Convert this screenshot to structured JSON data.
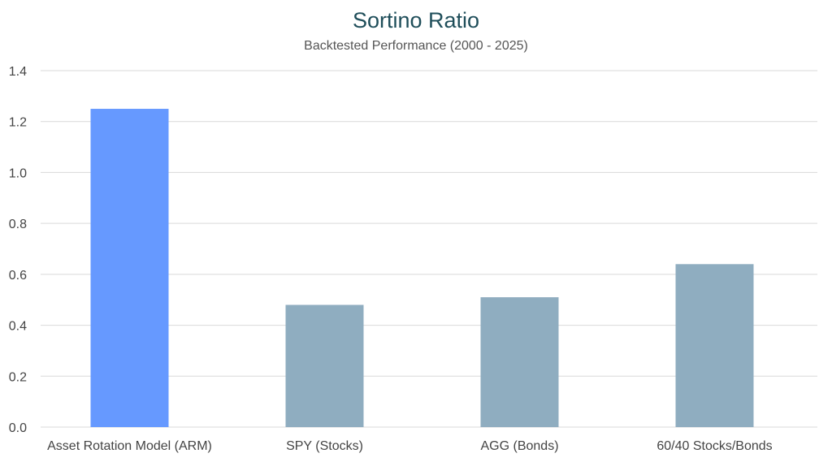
{
  "chart_data": {
    "type": "bar",
    "title": "Sortino Ratio",
    "subtitle": "Backtested Performance (2000 - 2025)",
    "xlabel": "",
    "ylabel": "",
    "categories": [
      "Asset Rotation Model (ARM)",
      "SPY (Stocks)",
      "AGG (Bonds)",
      "60/40 Stocks/Bonds"
    ],
    "values": [
      1.25,
      0.48,
      0.51,
      0.64
    ],
    "ylim": [
      0,
      1.4
    ],
    "yticks": [
      "0.0",
      "0.2",
      "0.4",
      "0.6",
      "0.8",
      "1.0",
      "1.2",
      "1.4"
    ],
    "grid": true,
    "legend": "none",
    "colors": {
      "highlight": "#6699ff",
      "default": "#8fadc0",
      "grid": "#d9d9d9",
      "title": "#1f4e5a",
      "tick_text": "#444444"
    }
  }
}
